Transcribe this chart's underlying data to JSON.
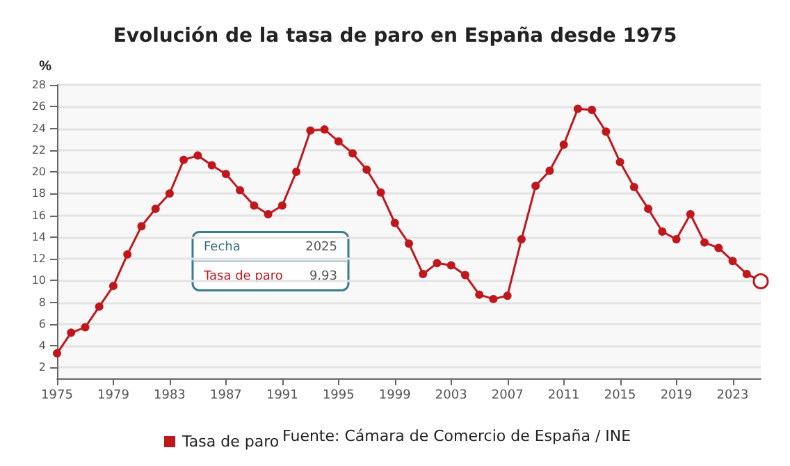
{
  "chart_data": {
    "type": "line",
    "title": "Evolución de la tasa de paro en España desde 1975",
    "ylabel": "%",
    "x": [
      1975,
      1976,
      1977,
      1978,
      1979,
      1980,
      1981,
      1982,
      1983,
      1984,
      1985,
      1986,
      1987,
      1988,
      1989,
      1990,
      1991,
      1992,
      1993,
      1994,
      1995,
      1996,
      1997,
      1998,
      1999,
      2000,
      2001,
      2002,
      2003,
      2004,
      2005,
      2006,
      2007,
      2008,
      2009,
      2010,
      2011,
      2012,
      2013,
      2014,
      2015,
      2016,
      2017,
      2018,
      2019,
      2020,
      2021,
      2022,
      2023,
      2024,
      2025
    ],
    "series": [
      {
        "name": "Tasa de paro",
        "color": "#c0171d",
        "values": [
          3.3,
          5.2,
          5.7,
          7.6,
          9.5,
          12.4,
          15.0,
          16.6,
          18.0,
          21.1,
          21.5,
          20.6,
          19.8,
          18.3,
          16.9,
          16.1,
          16.9,
          20.0,
          23.8,
          23.9,
          22.8,
          21.7,
          20.2,
          18.1,
          15.3,
          13.4,
          10.6,
          11.6,
          11.4,
          10.5,
          8.7,
          8.3,
          8.6,
          13.8,
          18.7,
          20.1,
          22.5,
          25.8,
          25.7,
          23.7,
          20.9,
          18.6,
          16.6,
          14.5,
          13.8,
          16.1,
          13.5,
          13.0,
          11.8,
          10.6,
          9.93
        ]
      }
    ],
    "xlim": [
      1975,
      2025
    ],
    "xticks": [
      1975,
      1979,
      1983,
      1987,
      1991,
      1995,
      1999,
      2003,
      2007,
      2011,
      2015,
      2019,
      2023
    ],
    "ylim": [
      1,
      28
    ],
    "yticks": [
      2,
      4,
      6,
      8,
      10,
      12,
      14,
      16,
      18,
      20,
      22,
      24,
      26,
      28
    ],
    "grid": "y",
    "legend": "bottom",
    "marker": "circle",
    "line_style": "solid",
    "annotations": [
      "Fecha",
      "2025",
      "Tasa de paro",
      "9,93",
      "Fuente: Cámara de Comercio de España / INE"
    ]
  }
}
